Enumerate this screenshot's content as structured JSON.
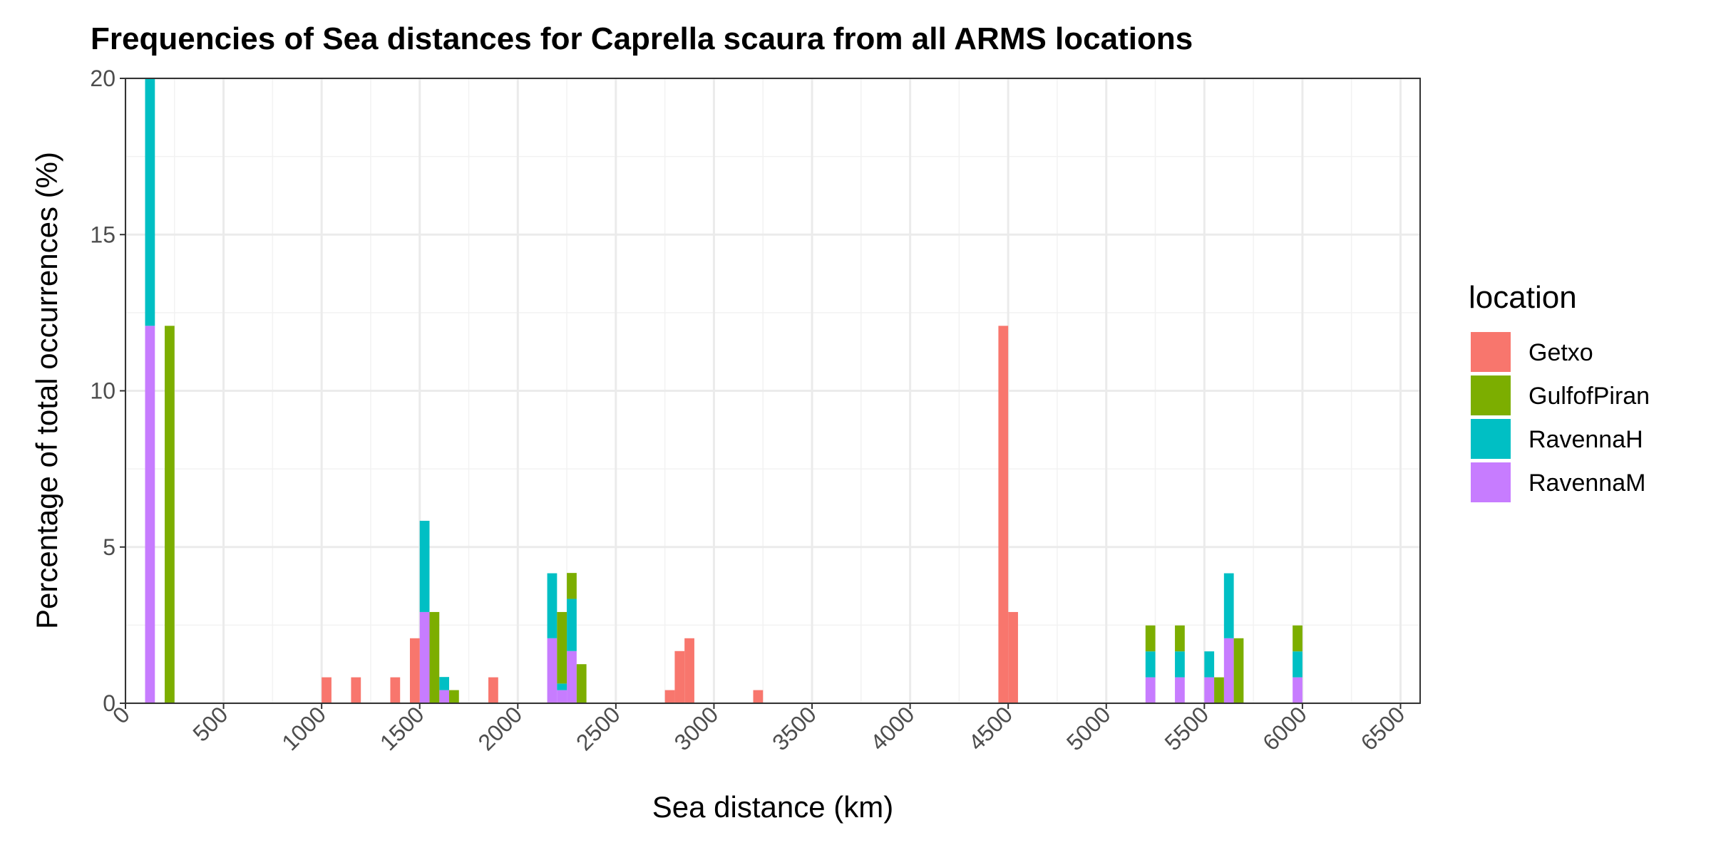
{
  "chart_data": {
    "type": "bar",
    "stacked": true,
    "title": "Frequencies of Sea distances for Caprella scaura from all ARMS locations",
    "xlabel": "Sea distance (km)",
    "ylabel": "Percentage of total occurrences (%)",
    "xlim": [
      0,
      6600
    ],
    "ylim": [
      0,
      20
    ],
    "bin_width": 50,
    "x_ticks": [
      0,
      500,
      1000,
      1500,
      2000,
      2500,
      3000,
      3500,
      4000,
      4500,
      5000,
      5500,
      6000,
      6500
    ],
    "x_tick_labels": [
      "0",
      "500",
      "1000",
      "1500",
      "2000",
      "2500",
      "3000",
      "3500",
      "4000",
      "4500",
      "5000",
      "5500",
      "6000",
      "6500"
    ],
    "y_ticks": [
      0,
      5,
      10,
      15,
      20
    ],
    "y_tick_labels": [
      "0",
      "5",
      "10",
      "15",
      "20"
    ],
    "grid": true,
    "legend": {
      "title": "location",
      "placement": "right",
      "stack_order": [
        "RavennaM",
        "RavennaH",
        "GulfofPiran",
        "Getxo"
      ]
    },
    "series": [
      {
        "name": "Getxo",
        "color": "#F8766D",
        "bins": [
          {
            "x": 1025,
            "value": 0.83
          },
          {
            "x": 1175,
            "value": 0.83
          },
          {
            "x": 1375,
            "value": 0.83
          },
          {
            "x": 1475,
            "value": 2.08
          },
          {
            "x": 1875,
            "value": 0.83
          },
          {
            "x": 2775,
            "value": 0.42
          },
          {
            "x": 2825,
            "value": 1.67
          },
          {
            "x": 2875,
            "value": 2.08
          },
          {
            "x": 3225,
            "value": 0.42
          },
          {
            "x": 4475,
            "value": 12.08
          },
          {
            "x": 4525,
            "value": 2.92
          }
        ]
      },
      {
        "name": "GulfofPiran",
        "color": "#7CAE00",
        "bins": [
          {
            "x": 225,
            "value": 12.08
          },
          {
            "x": 1575,
            "value": 2.92
          },
          {
            "x": 1675,
            "value": 0.42
          },
          {
            "x": 2225,
            "value": 2.29
          },
          {
            "x": 2275,
            "value": 0.83
          },
          {
            "x": 2325,
            "value": 1.25
          },
          {
            "x": 5225,
            "value": 0.83
          },
          {
            "x": 5375,
            "value": 0.83
          },
          {
            "x": 5575,
            "value": 0.83
          },
          {
            "x": 5675,
            "value": 2.08
          },
          {
            "x": 5975,
            "value": 0.83
          }
        ]
      },
      {
        "name": "RavennaH",
        "color": "#00BFC4",
        "bins": [
          {
            "x": 125,
            "value": 7.92
          },
          {
            "x": 1525,
            "value": 2.92
          },
          {
            "x": 1625,
            "value": 0.42
          },
          {
            "x": 2175,
            "value": 2.08
          },
          {
            "x": 2225,
            "value": 0.21
          },
          {
            "x": 2275,
            "value": 1.67
          },
          {
            "x": 5225,
            "value": 0.83
          },
          {
            "x": 5375,
            "value": 0.83
          },
          {
            "x": 5525,
            "value": 0.83
          },
          {
            "x": 5625,
            "value": 2.08
          },
          {
            "x": 5975,
            "value": 0.83
          }
        ]
      },
      {
        "name": "RavennaM",
        "color": "#C77CFF",
        "bins": [
          {
            "x": 125,
            "value": 12.08
          },
          {
            "x": 1525,
            "value": 2.92
          },
          {
            "x": 1625,
            "value": 0.42
          },
          {
            "x": 2175,
            "value": 2.08
          },
          {
            "x": 2225,
            "value": 0.42
          },
          {
            "x": 2275,
            "value": 1.67
          },
          {
            "x": 5225,
            "value": 0.83
          },
          {
            "x": 5375,
            "value": 0.83
          },
          {
            "x": 5525,
            "value": 0.83
          },
          {
            "x": 5625,
            "value": 2.08
          },
          {
            "x": 5975,
            "value": 0.83
          }
        ]
      }
    ]
  }
}
